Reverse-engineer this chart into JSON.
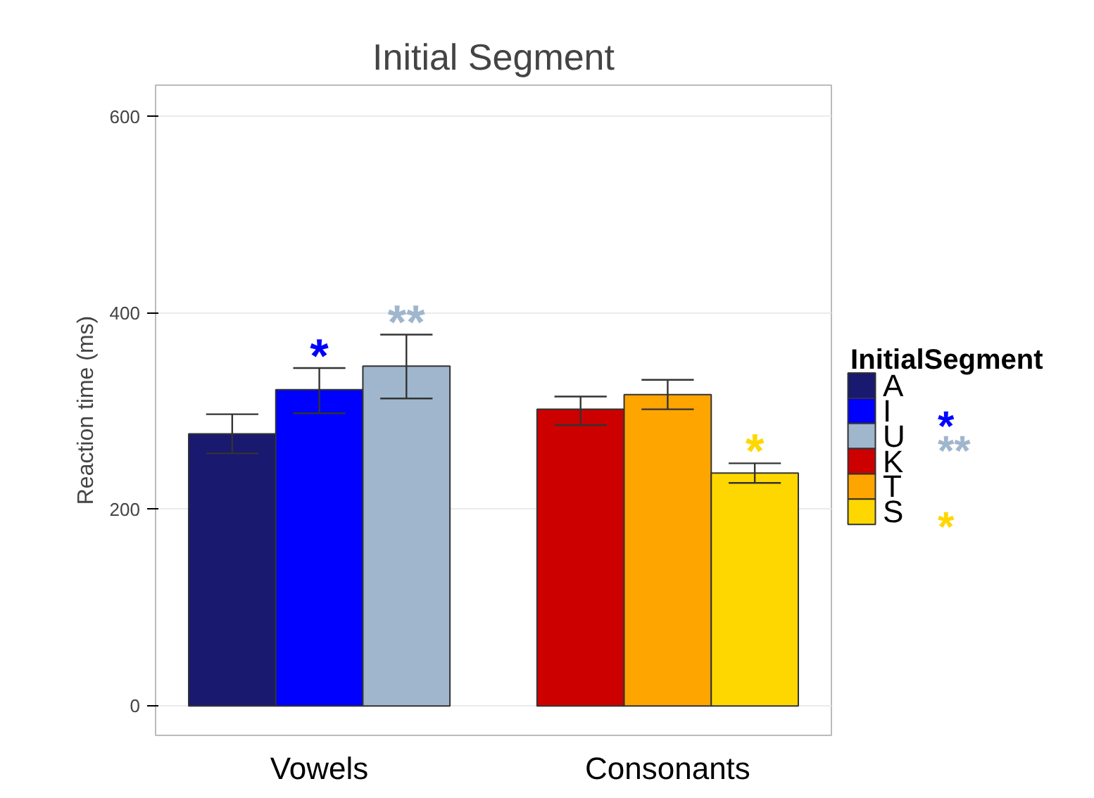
{
  "chart_data": {
    "type": "bar",
    "title": "Initial Segment",
    "ylabel": "Reaction time (ms)",
    "legend_title": "InitialSegment",
    "categories": [
      "Vowels",
      "Consonants"
    ],
    "series": [
      {
        "name": "A",
        "color": "#191970",
        "values": [
          277,
          null
        ],
        "errors": [
          [
            257,
            297
          ],
          null
        ]
      },
      {
        "name": "I",
        "color": "#0000ff",
        "values": [
          322,
          null
        ],
        "errors": [
          [
            298,
            344
          ],
          null
        ],
        "value_labels": [
          "*",
          null
        ]
      },
      {
        "name": "U",
        "color": "#9fb6cd",
        "values": [
          346,
          null
        ],
        "errors": [
          [
            313,
            378
          ],
          null
        ],
        "value_labels": [
          "**",
          null
        ]
      },
      {
        "name": "K",
        "color": "#cd0000",
        "values": [
          null,
          302
        ],
        "errors": [
          null,
          [
            286,
            315
          ]
        ]
      },
      {
        "name": "T",
        "color": "#ffa500",
        "values": [
          null,
          317
        ],
        "errors": [
          null,
          [
            302,
            332
          ]
        ]
      },
      {
        "name": "S",
        "color": "#ffd700",
        "values": [
          null,
          237
        ],
        "errors": [
          null,
          [
            227,
            247
          ]
        ],
        "value_labels": [
          null,
          "*"
        ]
      }
    ],
    "ylim": [
      -30,
      632
    ],
    "yticks": [
      0,
      200,
      400,
      600
    ],
    "grid": true,
    "legend": "right"
  }
}
